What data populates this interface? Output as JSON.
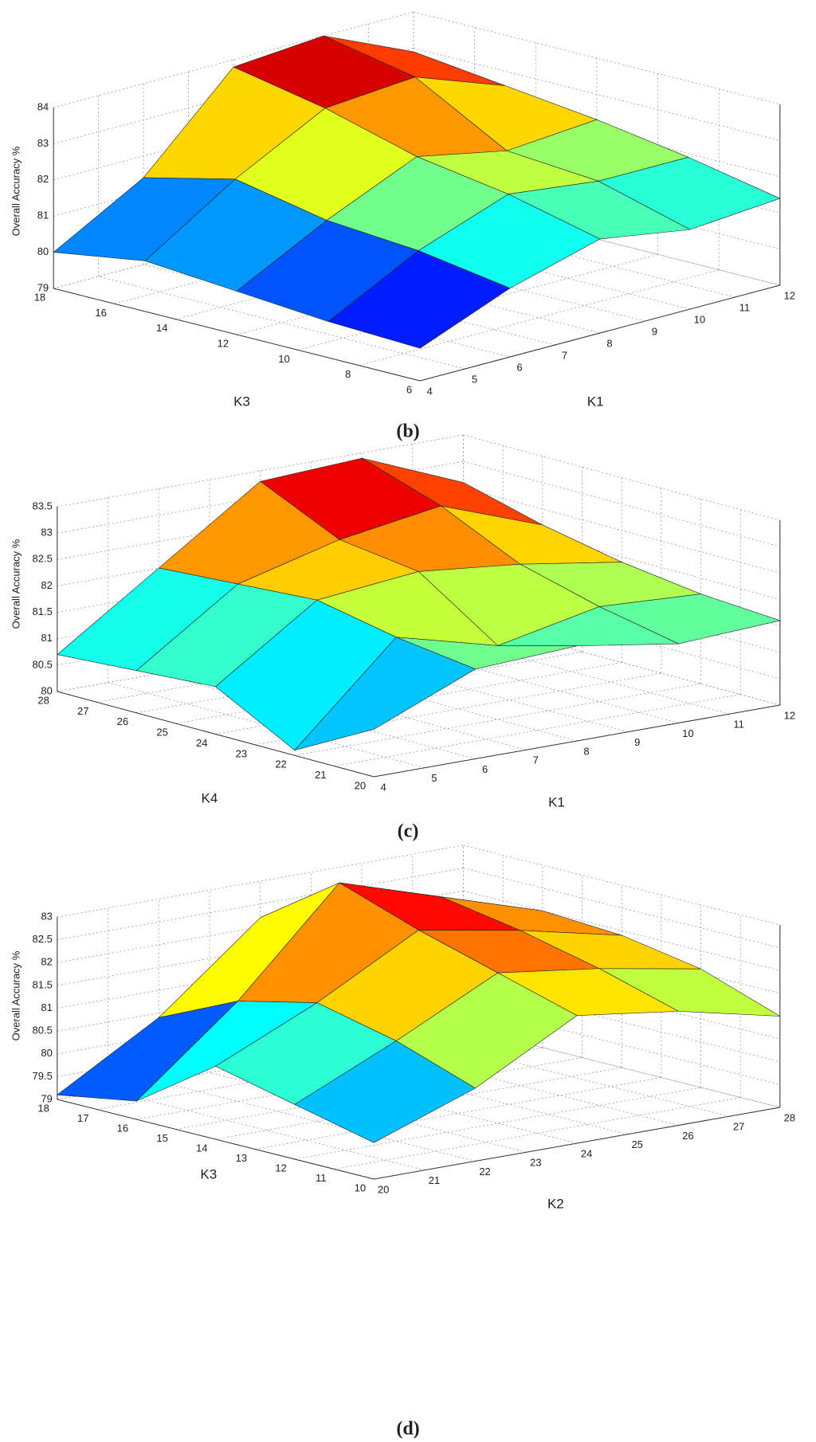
{
  "chart_data": [
    {
      "type": "surface",
      "colormap": "jet",
      "z_label": "Overall Accuracy %",
      "x_label": "K1",
      "y_label": "K3",
      "caption": "(b)",
      "xlim": [
        4,
        12
      ],
      "ylim": [
        6,
        18
      ],
      "zlim": [
        79,
        84
      ],
      "xticks": [
        4,
        5,
        6,
        7,
        8,
        9,
        10,
        11,
        12
      ],
      "yticks": [
        6,
        8,
        10,
        12,
        14,
        16,
        18
      ],
      "zticks": [
        79,
        80,
        81,
        82,
        83,
        84
      ],
      "x": [
        4,
        6,
        8,
        10,
        12
      ],
      "y": [
        6,
        9,
        12,
        15,
        18
      ],
      "z": [
        [
          79.9,
          80.9,
          81.6,
          81.2,
          81.4
        ],
        [
          80.0,
          81.3,
          82.2,
          81.9,
          81.9
        ],
        [
          80.2,
          81.5,
          82.6,
          82.1,
          82.3
        ],
        [
          80.4,
          82.0,
          83.3,
          83.5,
          82.6
        ],
        [
          80.0,
          81.4,
          83.8,
          84.0,
          82.9
        ]
      ]
    },
    {
      "type": "surface",
      "colormap": "jet",
      "z_label": "Overall Accuracy %",
      "x_label": "K1",
      "y_label": "K4",
      "caption": "(c)",
      "xlim": [
        4,
        12
      ],
      "ylim": [
        20,
        28
      ],
      "zlim": [
        80,
        83.5
      ],
      "xticks": [
        4,
        5,
        6,
        7,
        8,
        9,
        10,
        11,
        12
      ],
      "yticks": [
        20,
        21,
        22,
        23,
        24,
        25,
        26,
        27,
        28
      ],
      "zticks": [
        80,
        80.5,
        81,
        81.5,
        82,
        82.5,
        83,
        83.5
      ],
      "x": [
        4,
        6,
        8,
        10,
        12
      ],
      "y": [
        20,
        22,
        24,
        26,
        28
      ],
      "z": [
        [
          80.9,
          81.7,
          81.8,
          81.5,
          81.6
        ],
        [
          80.1,
          81.9,
          81.4,
          81.8,
          81.7
        ],
        [
          80.9,
          82.2,
          82.4,
          82.2,
          81.9
        ],
        [
          80.8,
          82.1,
          82.6,
          82.9,
          82.2
        ],
        [
          80.7,
          82.0,
          83.3,
          83.4,
          82.6
        ]
      ]
    },
    {
      "type": "surface",
      "colormap": "jet",
      "z_label": "Overall Accuracy %",
      "x_label": "K2",
      "y_label": "K3",
      "caption": "(d)",
      "xlim": [
        20,
        28
      ],
      "ylim": [
        10,
        18
      ],
      "zlim": [
        79,
        83
      ],
      "xticks": [
        20,
        21,
        22,
        23,
        24,
        25,
        26,
        27,
        28
      ],
      "yticks": [
        10,
        11,
        12,
        13,
        14,
        15,
        16,
        17,
        18
      ],
      "zticks": [
        79,
        79.5,
        80,
        80.5,
        81,
        81.5,
        82,
        82.5,
        83
      ],
      "x": [
        20,
        22,
        24,
        26,
        28
      ],
      "y": [
        10,
        12,
        14,
        16,
        18
      ],
      "z": [
        [
          79.8,
          80.6,
          81.8,
          81.5,
          81.0
        ],
        [
          80.2,
          81.2,
          82.3,
          82.0,
          81.6
        ],
        [
          80.6,
          81.6,
          82.8,
          82.4,
          81.9
        ],
        [
          79.4,
          81.2,
          83.4,
          82.7,
          82.0
        ],
        [
          79.1,
          80.4,
          82.2,
          82.5,
          81.7
        ]
      ]
    }
  ]
}
